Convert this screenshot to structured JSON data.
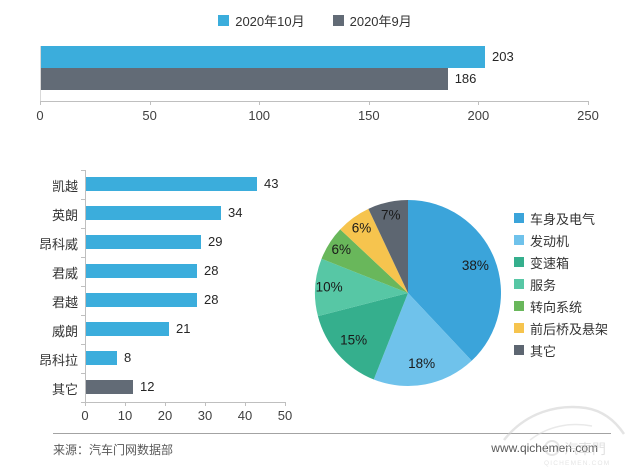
{
  "chart_data": [
    {
      "id": "monthly_total",
      "type": "bar",
      "orientation": "horizontal",
      "legend_position": "top",
      "series": [
        {
          "name": "2020年10月",
          "value": 203,
          "color": "#3BADDC"
        },
        {
          "name": "2020年9月",
          "value": 186,
          "color": "#626B76"
        }
      ],
      "xlim": [
        0,
        250
      ],
      "xticks": [
        0,
        50,
        100,
        150,
        200,
        250
      ],
      "grid": false
    },
    {
      "id": "model_breakdown",
      "type": "bar",
      "orientation": "horizontal",
      "categories": [
        "凯越",
        "英朗",
        "昂科威",
        "君威",
        "君越",
        "威朗",
        "昂科拉",
        "其它"
      ],
      "values": [
        43,
        34,
        29,
        28,
        28,
        21,
        8,
        12
      ],
      "bar_colors": [
        "#3BADDC",
        "#3BADDC",
        "#3BADDC",
        "#3BADDC",
        "#3BADDC",
        "#3BADDC",
        "#3BADDC",
        "#626B76"
      ],
      "xlim": [
        0,
        50
      ],
      "xticks": [
        0,
        10,
        20,
        30,
        40,
        50
      ],
      "grid": false
    },
    {
      "id": "fault_distribution",
      "type": "pie",
      "start_angle_deg": 0,
      "direction": "clockwise",
      "legend_position": "right",
      "labels": [
        "车身及电气",
        "发动机",
        "变速箱",
        "服务",
        "转向系统",
        "前后桥及悬架",
        "其它"
      ],
      "values": [
        38,
        18,
        15,
        10,
        6,
        6,
        7
      ],
      "value_labels": [
        "38%",
        "18%",
        "15%",
        "10%",
        "6%",
        "6%",
        "7%"
      ],
      "colors": [
        "#3BA4DA",
        "#6FC2EB",
        "#35AF8D",
        "#57C7A5",
        "#69B75B",
        "#F6C44E",
        "#5D6671"
      ]
    }
  ],
  "footer": {
    "source_label": "来源：汽车门网数据部",
    "website": "www.qichemen.com",
    "watermark_cn": "汽車門",
    "watermark_en": "QICHEMEN.COM"
  }
}
